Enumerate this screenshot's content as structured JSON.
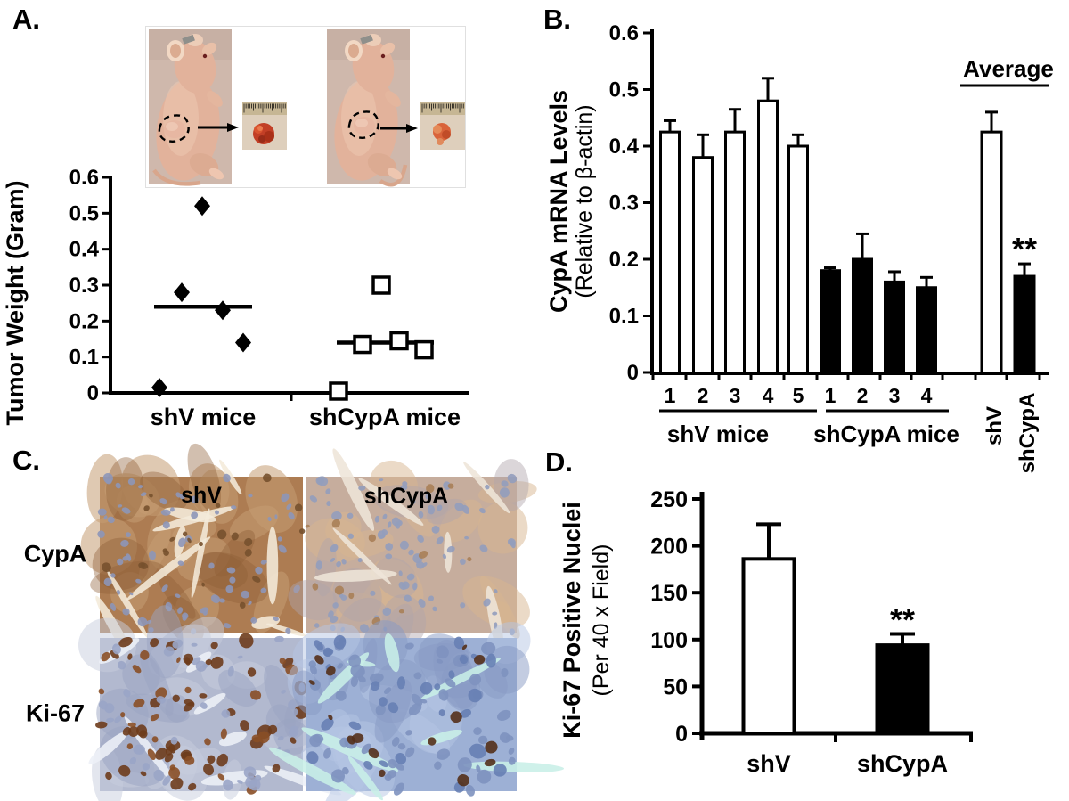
{
  "panels": {
    "a": {
      "label": "A."
    },
    "b": {
      "label": "B."
    },
    "c": {
      "label": "C."
    },
    "d": {
      "label": "D."
    }
  },
  "chart_data": [
    {
      "id": "A",
      "type": "scatter",
      "title": "",
      "ylabel": "Tumor Weight (Gram)",
      "ylim": [
        0,
        0.6
      ],
      "yticks": [
        0,
        0.1,
        0.2,
        0.3,
        0.4,
        0.5,
        0.6
      ],
      "grid": false,
      "groups": [
        {
          "name": "shV mice",
          "marker": "filled-diamond",
          "values": [
            0.52,
            0.28,
            0.23,
            0.14,
            0.015
          ],
          "mean": 0.24
        },
        {
          "name": "shCypA mice",
          "marker": "open-square",
          "values": [
            0.3,
            0.135,
            0.145,
            0.12,
            0.005
          ],
          "mean": 0.14
        }
      ]
    },
    {
      "id": "B",
      "type": "bar",
      "ylabel_bold": "CypA mRNA Levels",
      "ylabel_normal": "(Relative to β-actin)",
      "ylim": [
        0,
        0.6
      ],
      "yticks": [
        0,
        0.1,
        0.2,
        0.3,
        0.4,
        0.5,
        0.6
      ],
      "average_header": "Average",
      "groups": [
        {
          "name": "shV mice",
          "fill": "white",
          "labels": [
            "1",
            "2",
            "3",
            "4",
            "5"
          ],
          "values": [
            0.425,
            0.38,
            0.425,
            0.48,
            0.4
          ],
          "errors": [
            0.02,
            0.04,
            0.04,
            0.04,
            0.02
          ]
        },
        {
          "name": "shCypA mice",
          "fill": "black",
          "labels": [
            "1",
            "2",
            "3",
            "4"
          ],
          "values": [
            0.18,
            0.2,
            0.16,
            0.15
          ],
          "errors": [
            0.005,
            0.045,
            0.018,
            0.018
          ]
        },
        {
          "name": "Average",
          "labels": [
            "shV",
            "shCypA"
          ],
          "fills": [
            "white",
            "black"
          ],
          "values": [
            0.425,
            0.17
          ],
          "errors": [
            0.035,
            0.022
          ],
          "sig": [
            null,
            "**"
          ]
        }
      ]
    },
    {
      "id": "D",
      "type": "bar",
      "ylabel_bold": "Ki-67 Positive Nuclei",
      "ylabel_normal": "(Per 40 x Field)",
      "ylim": [
        0,
        250
      ],
      "yticks": [
        0,
        50,
        100,
        150,
        200,
        250
      ],
      "categories": [
        "shV",
        "shCypA"
      ],
      "values": [
        186,
        94
      ],
      "errors": [
        37,
        12
      ],
      "fills": [
        "white",
        "black"
      ],
      "sig": [
        null,
        "**"
      ]
    }
  ],
  "panel_c": {
    "row_labels": [
      "CypA",
      "Ki-67"
    ],
    "col_labels": [
      "shV",
      "shCypA"
    ],
    "tiles": [
      {
        "name": "cypa-shv",
        "base": "#ad7c52",
        "patches": [
          {
            "c": "#c59c72",
            "n": 16,
            "o": 0.55
          },
          {
            "c": "#8f5f38",
            "n": 10,
            "o": 0.4
          }
        ],
        "streaks": {
          "c": "#f4ebd9",
          "n": 11
        },
        "nuclei": [
          {
            "c": "#8d96b8",
            "n": 75,
            "rx": 4
          },
          {
            "c": "#77512e",
            "n": 22,
            "rx": 4
          }
        ]
      },
      {
        "name": "cypa-shcypa",
        "base": "#c6ad9d",
        "patches": [
          {
            "c": "#d8b590",
            "n": 14,
            "o": 0.5
          },
          {
            "c": "#b0a3ab",
            "n": 10,
            "o": 0.45
          }
        ],
        "streaks": {
          "c": "#eee5d8",
          "n": 7
        },
        "nuclei": [
          {
            "c": "#929dbc",
            "n": 85,
            "rx": 4
          },
          {
            "c": "#a87f58",
            "n": 12,
            "rx": 4
          }
        ]
      },
      {
        "name": "ki67-shv",
        "base": "#b2b9cf",
        "patches": [
          {
            "c": "#c8cede",
            "n": 14,
            "o": 0.5
          },
          {
            "c": "#9aa3c2",
            "n": 12,
            "o": 0.5
          }
        ],
        "streaks": {
          "c": "#edf0f7",
          "n": 8
        },
        "nuclei": [
          {
            "c": "#6e3c1c",
            "n": 48,
            "rx": 6
          },
          {
            "c": "#8a4f26",
            "n": 26,
            "rx": 5
          },
          {
            "c": "#9aa5c6",
            "n": 40,
            "rx": 5
          }
        ]
      },
      {
        "name": "ki67-shcypa",
        "base": "#9db0d5",
        "patches": [
          {
            "c": "#b6c5e3",
            "n": 16,
            "o": 0.5
          },
          {
            "c": "#8799c4",
            "n": 12,
            "o": 0.5
          }
        ],
        "streaks": {
          "c": "#c8efe7",
          "n": 9
        },
        "nuclei": [
          {
            "c": "#7e92bf",
            "n": 62,
            "rx": 6
          },
          {
            "c": "#6780b4",
            "n": 28,
            "rx": 6
          },
          {
            "c": "#543019",
            "n": 15,
            "rx": 5
          }
        ]
      }
    ]
  },
  "panel_a_photos": {
    "skin": "#e2b29b",
    "photo_bg": "#cfb8ac",
    "tumor_red": "#c23f26",
    "ruler_tan": "#c6b694"
  }
}
